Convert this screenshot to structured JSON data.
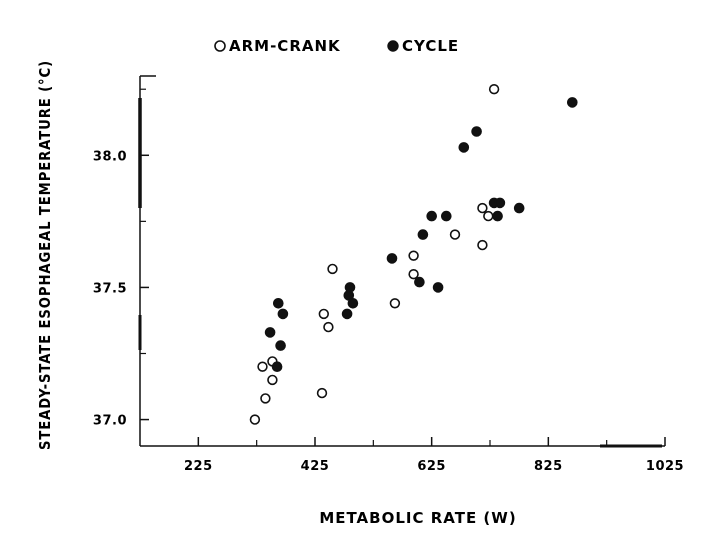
{
  "chart_data": {
    "type": "scatter",
    "title": "",
    "xlabel": "METABOLIC RATE (W)",
    "ylabel": "STEADY-STATE ESOPHAGEAL TEMPERATURE (°C)",
    "xlim": [
      125,
      1025
    ],
    "ylim": [
      36.9,
      38.3
    ],
    "x_ticks": [
      225,
      425,
      625,
      825,
      1025
    ],
    "x_tick_labels": [
      "225",
      "425",
      "625",
      "825",
      "1025"
    ],
    "y_ticks": [
      37.0,
      37.5,
      38.0
    ],
    "y_tick_labels": [
      "37.0",
      "37.5",
      "38.0"
    ],
    "legend": {
      "placement": "top",
      "entries": [
        {
          "name": "ARM-CRANK",
          "marker": "open-circle"
        },
        {
          "name": "CYCLE",
          "marker": "filled-circle"
        }
      ]
    },
    "series": [
      {
        "name": "ARM-CRANK",
        "marker": "open-circle",
        "points": [
          [
            322,
            37.0
          ],
          [
            335,
            37.2
          ],
          [
            340,
            37.08
          ],
          [
            352,
            37.15
          ],
          [
            352,
            37.22
          ],
          [
            437,
            37.1
          ],
          [
            440,
            37.4
          ],
          [
            448,
            37.35
          ],
          [
            455,
            37.57
          ],
          [
            562,
            37.44
          ],
          [
            594,
            37.55
          ],
          [
            594,
            37.62
          ],
          [
            665,
            37.7
          ],
          [
            712,
            37.66
          ],
          [
            712,
            37.8
          ],
          [
            722,
            37.77
          ],
          [
            732,
            38.25
          ]
        ]
      },
      {
        "name": "CYCLE",
        "marker": "filled-circle",
        "points": [
          [
            348,
            37.33
          ],
          [
            360,
            37.2
          ],
          [
            362,
            37.44
          ],
          [
            366,
            37.28
          ],
          [
            370,
            37.4
          ],
          [
            480,
            37.4
          ],
          [
            483,
            37.47
          ],
          [
            485,
            37.5
          ],
          [
            490,
            37.44
          ],
          [
            557,
            37.61
          ],
          [
            604,
            37.52
          ],
          [
            610,
            37.7
          ],
          [
            625,
            37.77
          ],
          [
            636,
            37.5
          ],
          [
            650,
            37.77
          ],
          [
            680,
            38.03
          ],
          [
            702,
            38.09
          ],
          [
            732,
            37.82
          ],
          [
            738,
            37.77
          ],
          [
            742,
            37.82
          ],
          [
            775,
            37.8
          ],
          [
            866,
            38.2
          ]
        ]
      }
    ]
  }
}
